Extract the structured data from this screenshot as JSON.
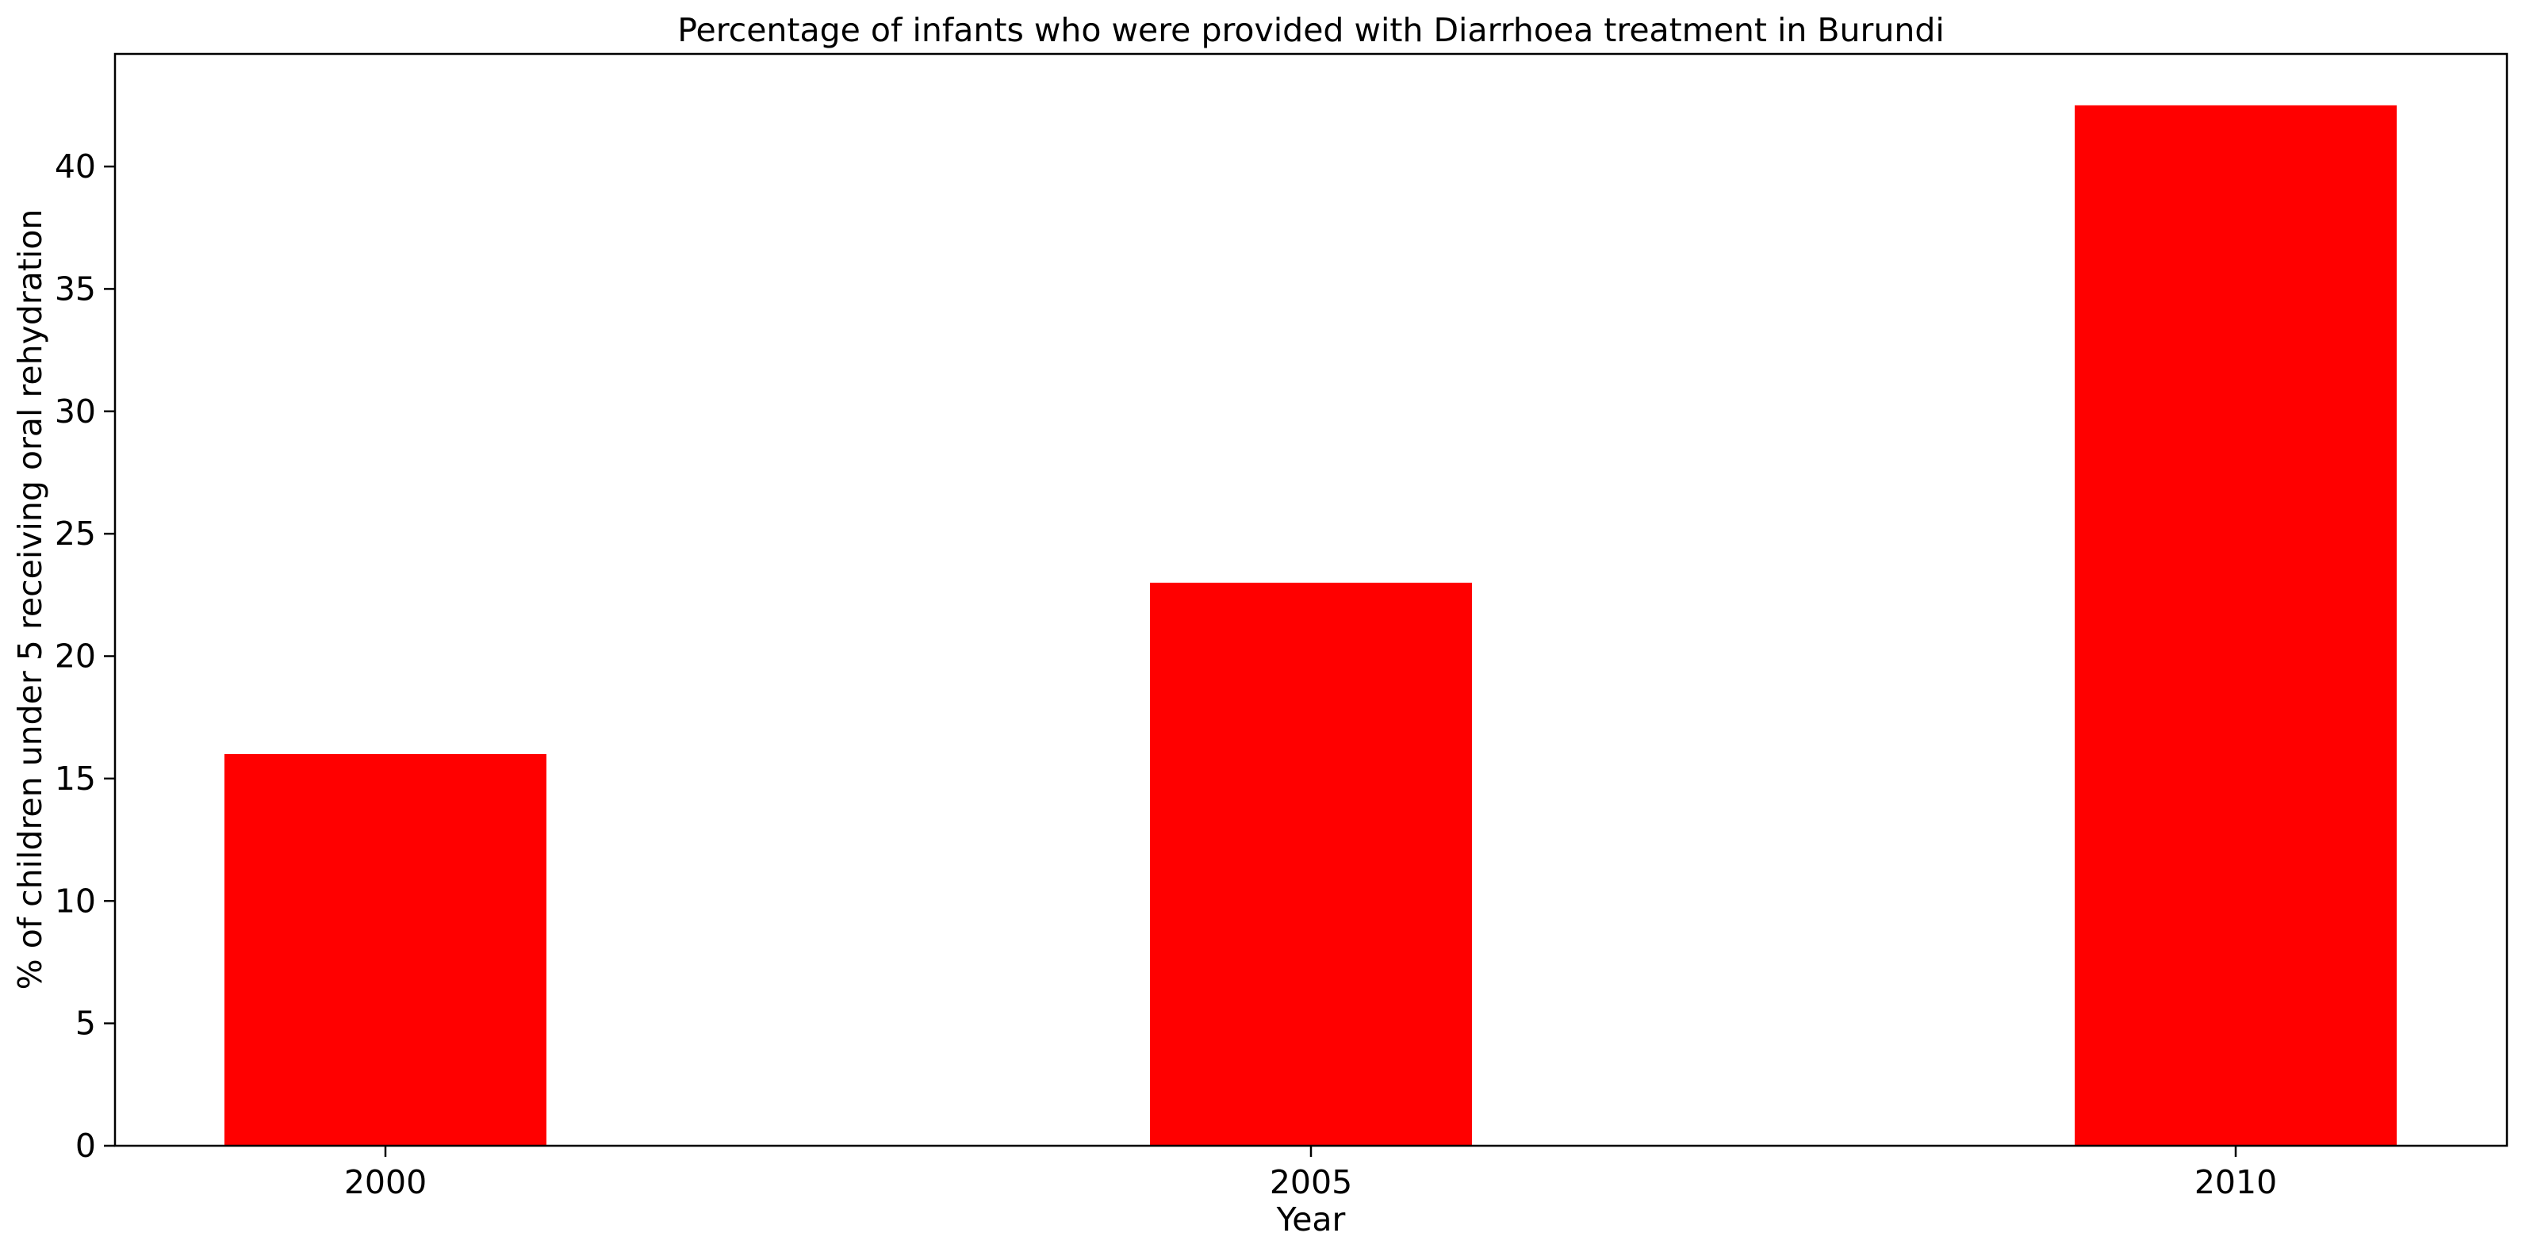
{
  "chart_data": {
    "type": "bar",
    "title": "Percentage of infants who were provided with Diarrhoea treatment in Burundi",
    "xlabel": "Year",
    "ylabel": "% of children under 5 receiving oral rehydration",
    "categories": [
      "2000",
      "2005",
      "2010"
    ],
    "values": [
      16,
      23,
      42.5
    ],
    "ylim": [
      0,
      44.6
    ],
    "yticks": [
      0,
      5,
      10,
      15,
      20,
      25,
      30,
      35,
      40
    ],
    "bar_color": "#ff0000",
    "grid": false,
    "legend": "none"
  }
}
